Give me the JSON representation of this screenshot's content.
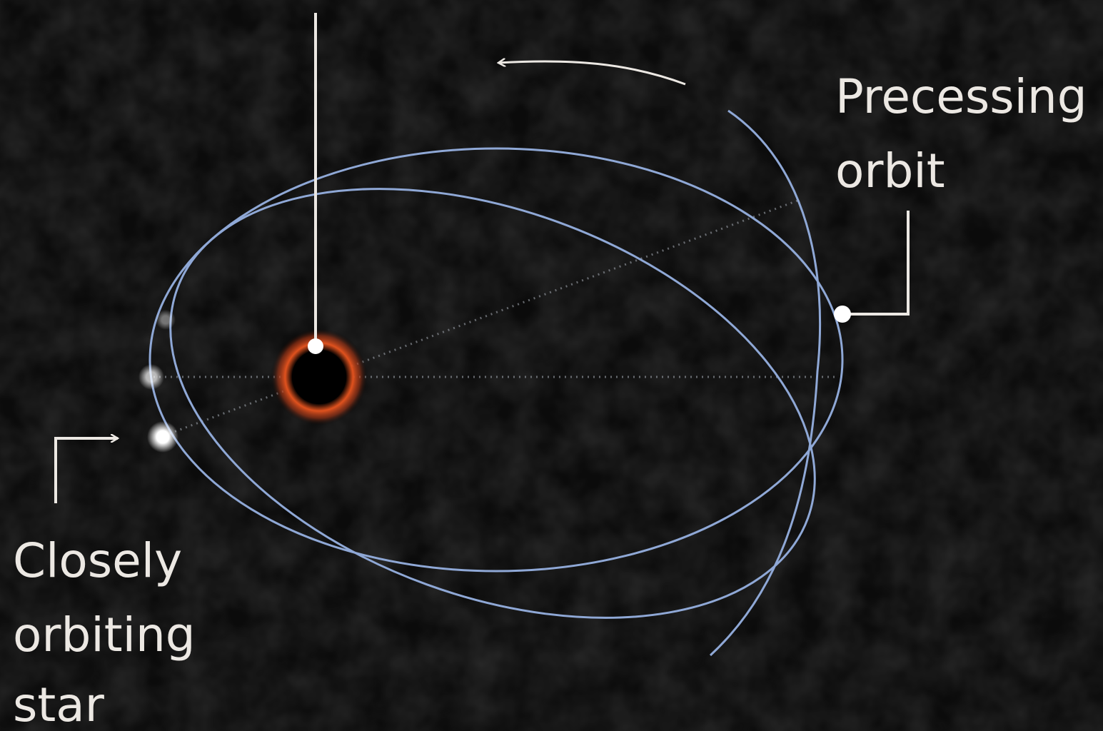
{
  "labels": {
    "precessing_orbit": [
      "Precessing",
      "orbit"
    ],
    "closely_orbiting_star": [
      "Closely",
      "orbiting",
      "star"
    ]
  }
}
